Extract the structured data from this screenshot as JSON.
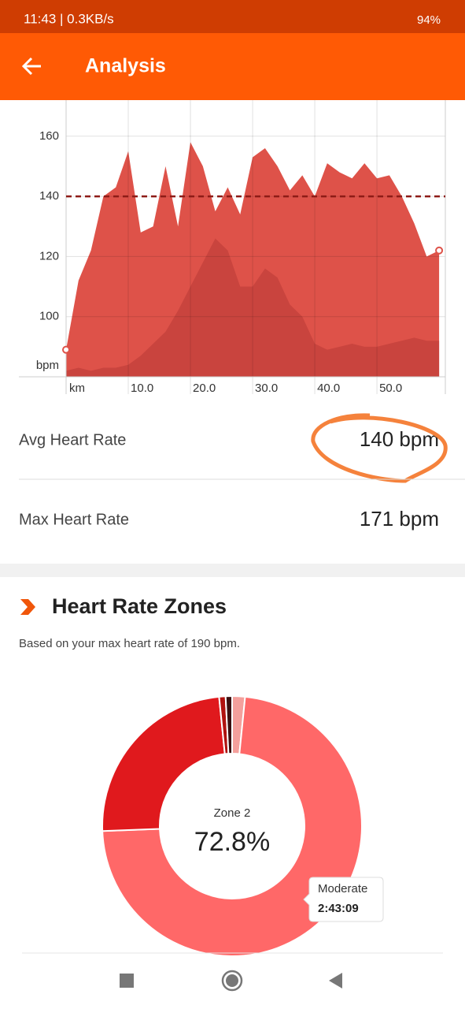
{
  "status_bar": {
    "time": "11:43 | 0.3KB/s",
    "battery": "94%"
  },
  "header": {
    "title": "Analysis"
  },
  "chart_data": [
    {
      "type": "area",
      "x_label": "km",
      "y_label": "bpm",
      "x": [
        0,
        2,
        4,
        6,
        8,
        10,
        12,
        14,
        16,
        18,
        20,
        22,
        24,
        26,
        28,
        30,
        32,
        34,
        36,
        38,
        40,
        42,
        44,
        46,
        48,
        50,
        52,
        54,
        56,
        58,
        60
      ],
      "series": [
        {
          "color": "#de5249",
          "values": [
            89,
            112,
            122,
            140,
            143,
            155,
            128,
            130,
            150,
            130,
            158,
            150,
            135,
            143,
            134,
            153,
            156,
            150,
            142,
            147,
            140,
            151,
            148,
            146,
            151,
            146,
            147,
            140,
            131,
            120,
            122
          ]
        },
        {
          "color": "#c9443e",
          "values": [
            82,
            83,
            82,
            83,
            83,
            84,
            87,
            91,
            95,
            102,
            110,
            118,
            126,
            122,
            110,
            110,
            116,
            113,
            104,
            100,
            91,
            89,
            90,
            91,
            90,
            90,
            91,
            92,
            93,
            92,
            92
          ]
        }
      ],
      "xlim": [
        0,
        61
      ],
      "xticks": [
        {
          "value": 10,
          "label": "10.0"
        },
        {
          "value": 20,
          "label": "20.0"
        },
        {
          "value": 30,
          "label": "30.0"
        },
        {
          "value": 40,
          "label": "40.0"
        },
        {
          "value": 50,
          "label": "50.0"
        }
      ],
      "ylim": [
        80,
        172
      ],
      "yticks": [
        100,
        120,
        140,
        160
      ],
      "grid": true,
      "reference_line": {
        "value": 140,
        "color": "#8e1c17"
      }
    },
    {
      "type": "donut",
      "values": [
        1.6,
        72.8,
        24.0,
        0.8,
        0.8
      ],
      "colors": [
        "#f4a09c",
        "#ff6868",
        "#e0191d",
        "#b0120f",
        "#3a1010"
      ],
      "value_labels": [
        null,
        "72.8%",
        null,
        null,
        null
      ],
      "center_label": "Zone 2",
      "tooltip": {
        "title": "Moderate",
        "value": "2:43:09"
      }
    }
  ],
  "stats": [
    {
      "label": "Avg Heart Rate",
      "value": "140 bpm"
    },
    {
      "label": "Max Heart Rate",
      "value": "171 bpm"
    }
  ],
  "zones": {
    "title": "Heart Rate Zones",
    "subtitle": "Based on your max heart rate of 190 bpm."
  }
}
